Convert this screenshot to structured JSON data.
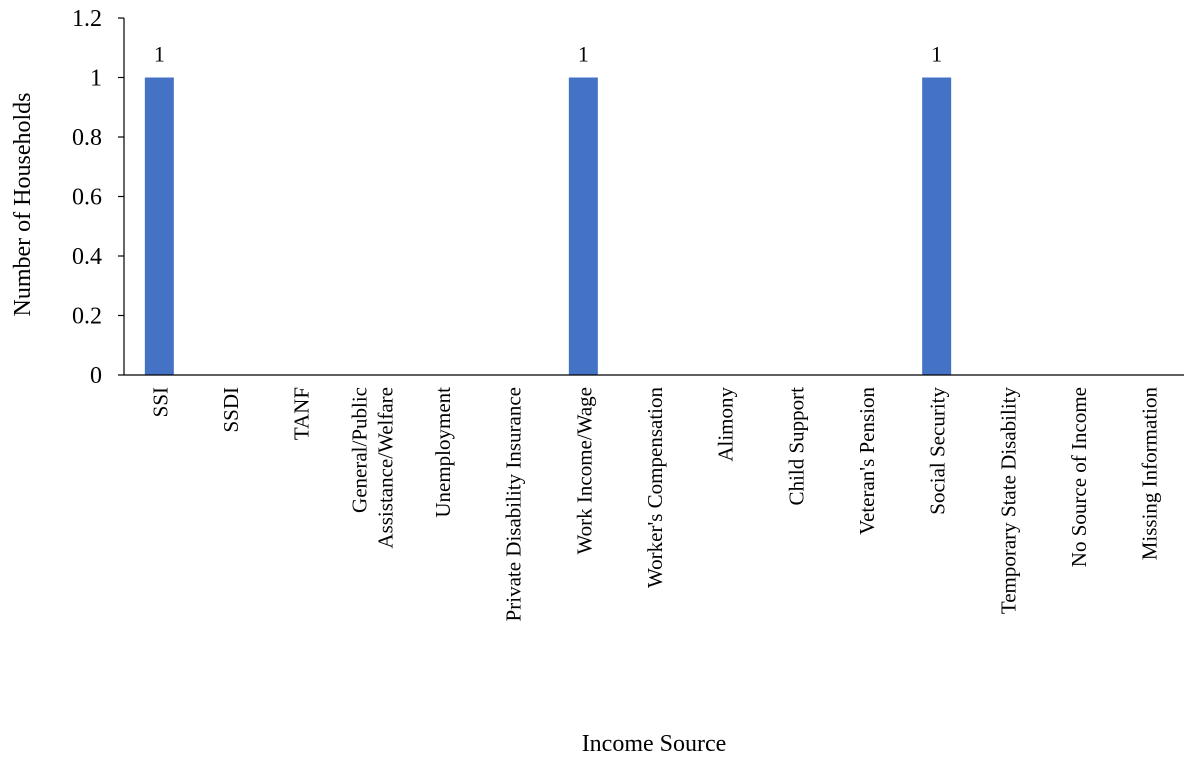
{
  "chart_data": {
    "type": "bar",
    "title": "",
    "xlabel": "Income Source",
    "ylabel": "Number of Households",
    "ylim": [
      0,
      1.2
    ],
    "yticks": [
      0,
      0.2,
      0.4,
      0.6,
      0.8,
      1,
      1.2
    ],
    "grid": false,
    "legend": "none",
    "bar_color": "#4472C4",
    "categories": [
      [
        "SSI"
      ],
      [
        "SSDI"
      ],
      [
        "TANF"
      ],
      [
        "General/Public",
        "Assistance/Welfare"
      ],
      [
        "Unemployment"
      ],
      [
        "Private Disability Insurance"
      ],
      [
        "Work Income/Wage"
      ],
      [
        "Worker's Compensation"
      ],
      [
        "Alimony"
      ],
      [
        "Child Support"
      ],
      [
        "Veteran's Pension"
      ],
      [
        "Social Security"
      ],
      [
        "Temporary State Disability"
      ],
      [
        "No Source of Income"
      ],
      [
        "Missing Information"
      ]
    ],
    "values": [
      1,
      0,
      0,
      0,
      0,
      0,
      1,
      0,
      0,
      0,
      0,
      1,
      0,
      0,
      0
    ],
    "data_labels": [
      "1",
      "",
      "",
      "",
      "",
      "",
      "1",
      "",
      "",
      "",
      "",
      "1",
      "",
      "",
      ""
    ]
  }
}
